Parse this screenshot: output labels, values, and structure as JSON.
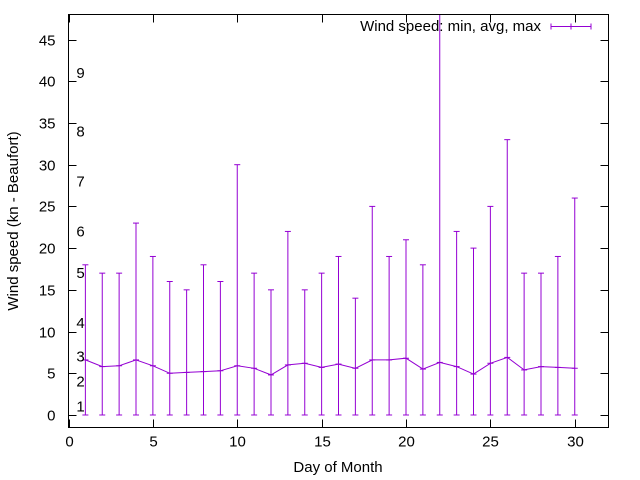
{
  "chart_data": {
    "type": "line",
    "xlabel": "Day of Month",
    "ylabel": "Wind speed (kn - Beaufort)",
    "xlim": [
      0,
      32
    ],
    "ylim": [
      -1.5,
      48
    ],
    "x_ticks": [
      0,
      5,
      10,
      15,
      20,
      25,
      30
    ],
    "y_ticks": [
      0,
      5,
      10,
      15,
      20,
      25,
      30,
      35,
      40,
      45
    ],
    "beaufort_labels": [
      {
        "label": "1",
        "value": 1
      },
      {
        "label": "2",
        "value": 4
      },
      {
        "label": "3",
        "value": 7
      },
      {
        "label": "4",
        "value": 11
      },
      {
        "label": "5",
        "value": 17
      },
      {
        "label": "6",
        "value": 22
      },
      {
        "label": "7",
        "value": 28
      },
      {
        "label": "8",
        "value": 34
      },
      {
        "label": "9",
        "value": 41
      }
    ],
    "legend": "Wind speed: min, avg, max",
    "legend_position": "top-right",
    "color": "#9400d3",
    "series": [
      {
        "name": "Wind speed: min, avg, max",
        "x": [
          1,
          2,
          3,
          4,
          5,
          6,
          7,
          8,
          9,
          10,
          11,
          12,
          13,
          14,
          15,
          16,
          17,
          18,
          19,
          20,
          21,
          22,
          23,
          24,
          25,
          26,
          27,
          28,
          29,
          30
        ],
        "min": [
          0,
          0,
          0,
          0,
          0,
          0,
          0,
          0,
          0,
          0,
          0,
          0,
          0,
          0,
          0,
          0,
          0,
          0,
          0,
          0,
          0,
          0,
          0,
          0,
          0,
          0,
          0,
          0,
          0,
          0
        ],
        "avg": [
          6.6,
          5.8,
          5.9,
          6.6,
          5.9,
          5.0,
          5.1,
          5.2,
          5.3,
          5.9,
          5.6,
          4.8,
          6.0,
          6.2,
          5.7,
          6.1,
          5.6,
          6.6,
          6.6,
          6.8,
          5.5,
          6.3,
          5.8,
          4.9,
          6.2,
          6.9,
          5.4,
          5.8,
          5.7,
          5.6
        ],
        "max": [
          18,
          17,
          17,
          23,
          19,
          16,
          15,
          18,
          16,
          30,
          17,
          15,
          22,
          15,
          17,
          19,
          14,
          25,
          19,
          21,
          18,
          48,
          22,
          20,
          25,
          33,
          17,
          17,
          19,
          26
        ]
      }
    ]
  }
}
